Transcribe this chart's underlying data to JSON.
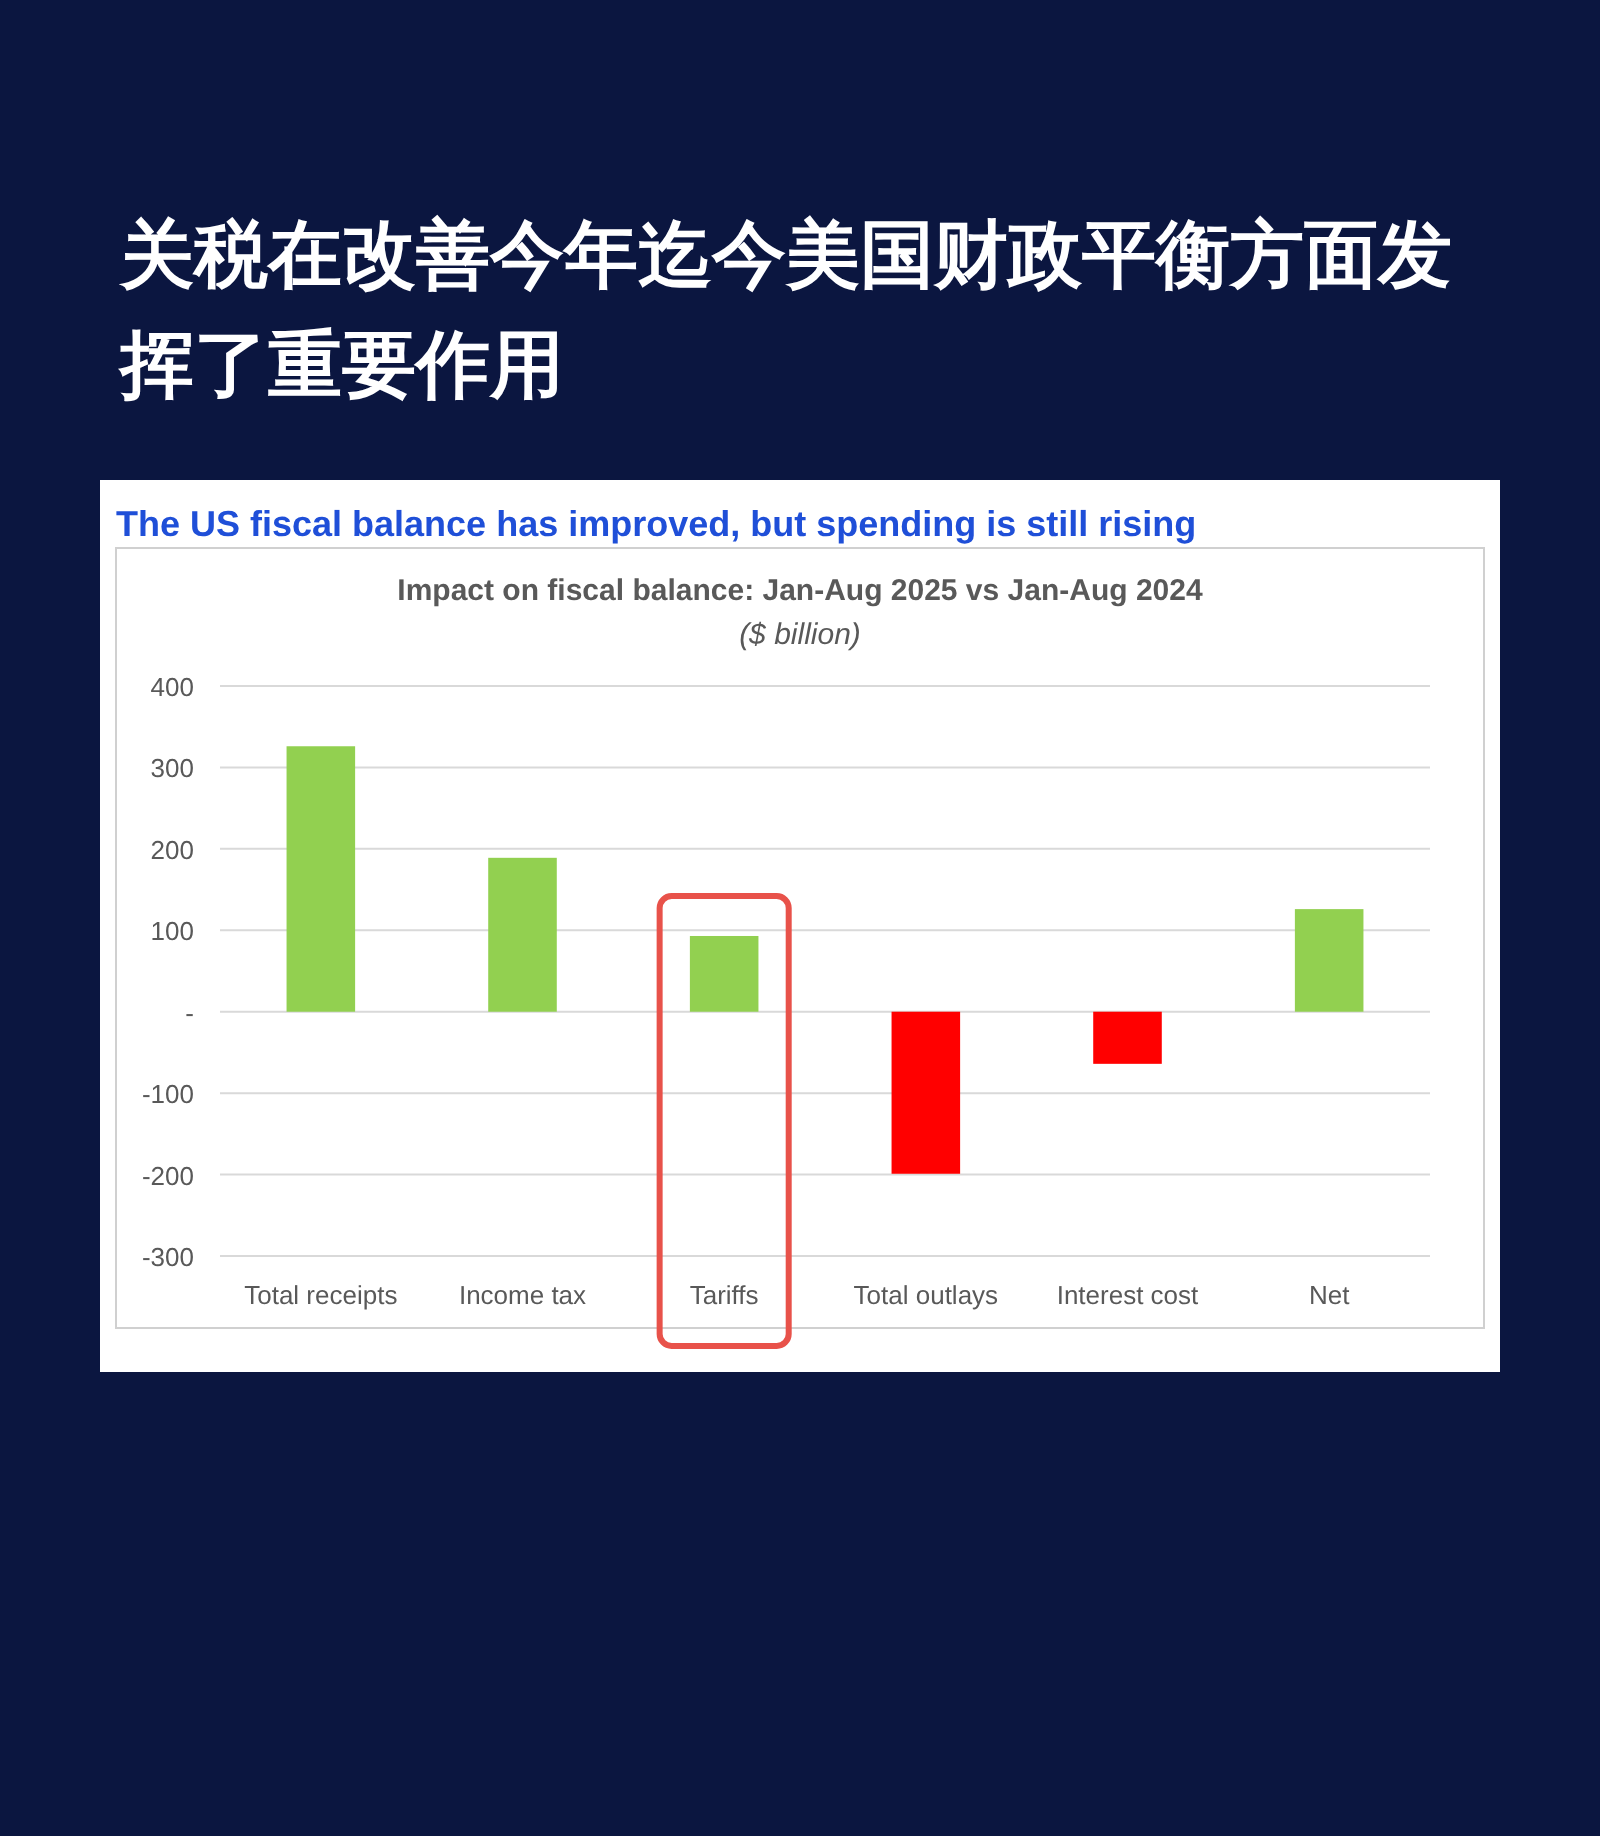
{
  "chart_data": {
    "type": "bar",
    "title": "关税在改善今年迄今美国财政平衡方面发挥了重要作用",
    "subtitle": "The US fiscal balance has improved, but spending is still rising",
    "annotations": [
      "Impact on fiscal balance: Jan-Aug 2025 vs Jan-Aug 2024",
      "($ billion)"
    ],
    "categories": [
      "Total receipts",
      "Income tax",
      "Tariffs",
      "Total outlays",
      "Interest cost",
      "Net"
    ],
    "values": [
      326,
      189,
      93,
      -199,
      -64,
      126
    ],
    "colors": [
      "#92d050",
      "#92d050",
      "#92d050",
      "#ff0000",
      "#ff0000",
      "#92d050"
    ],
    "ylim": [
      -300,
      400
    ],
    "yticks": [
      -300,
      -200,
      -100,
      {
        "value": 0,
        "label": "-"
      },
      100,
      200,
      300,
      400
    ],
    "grid": "y"
  }
}
